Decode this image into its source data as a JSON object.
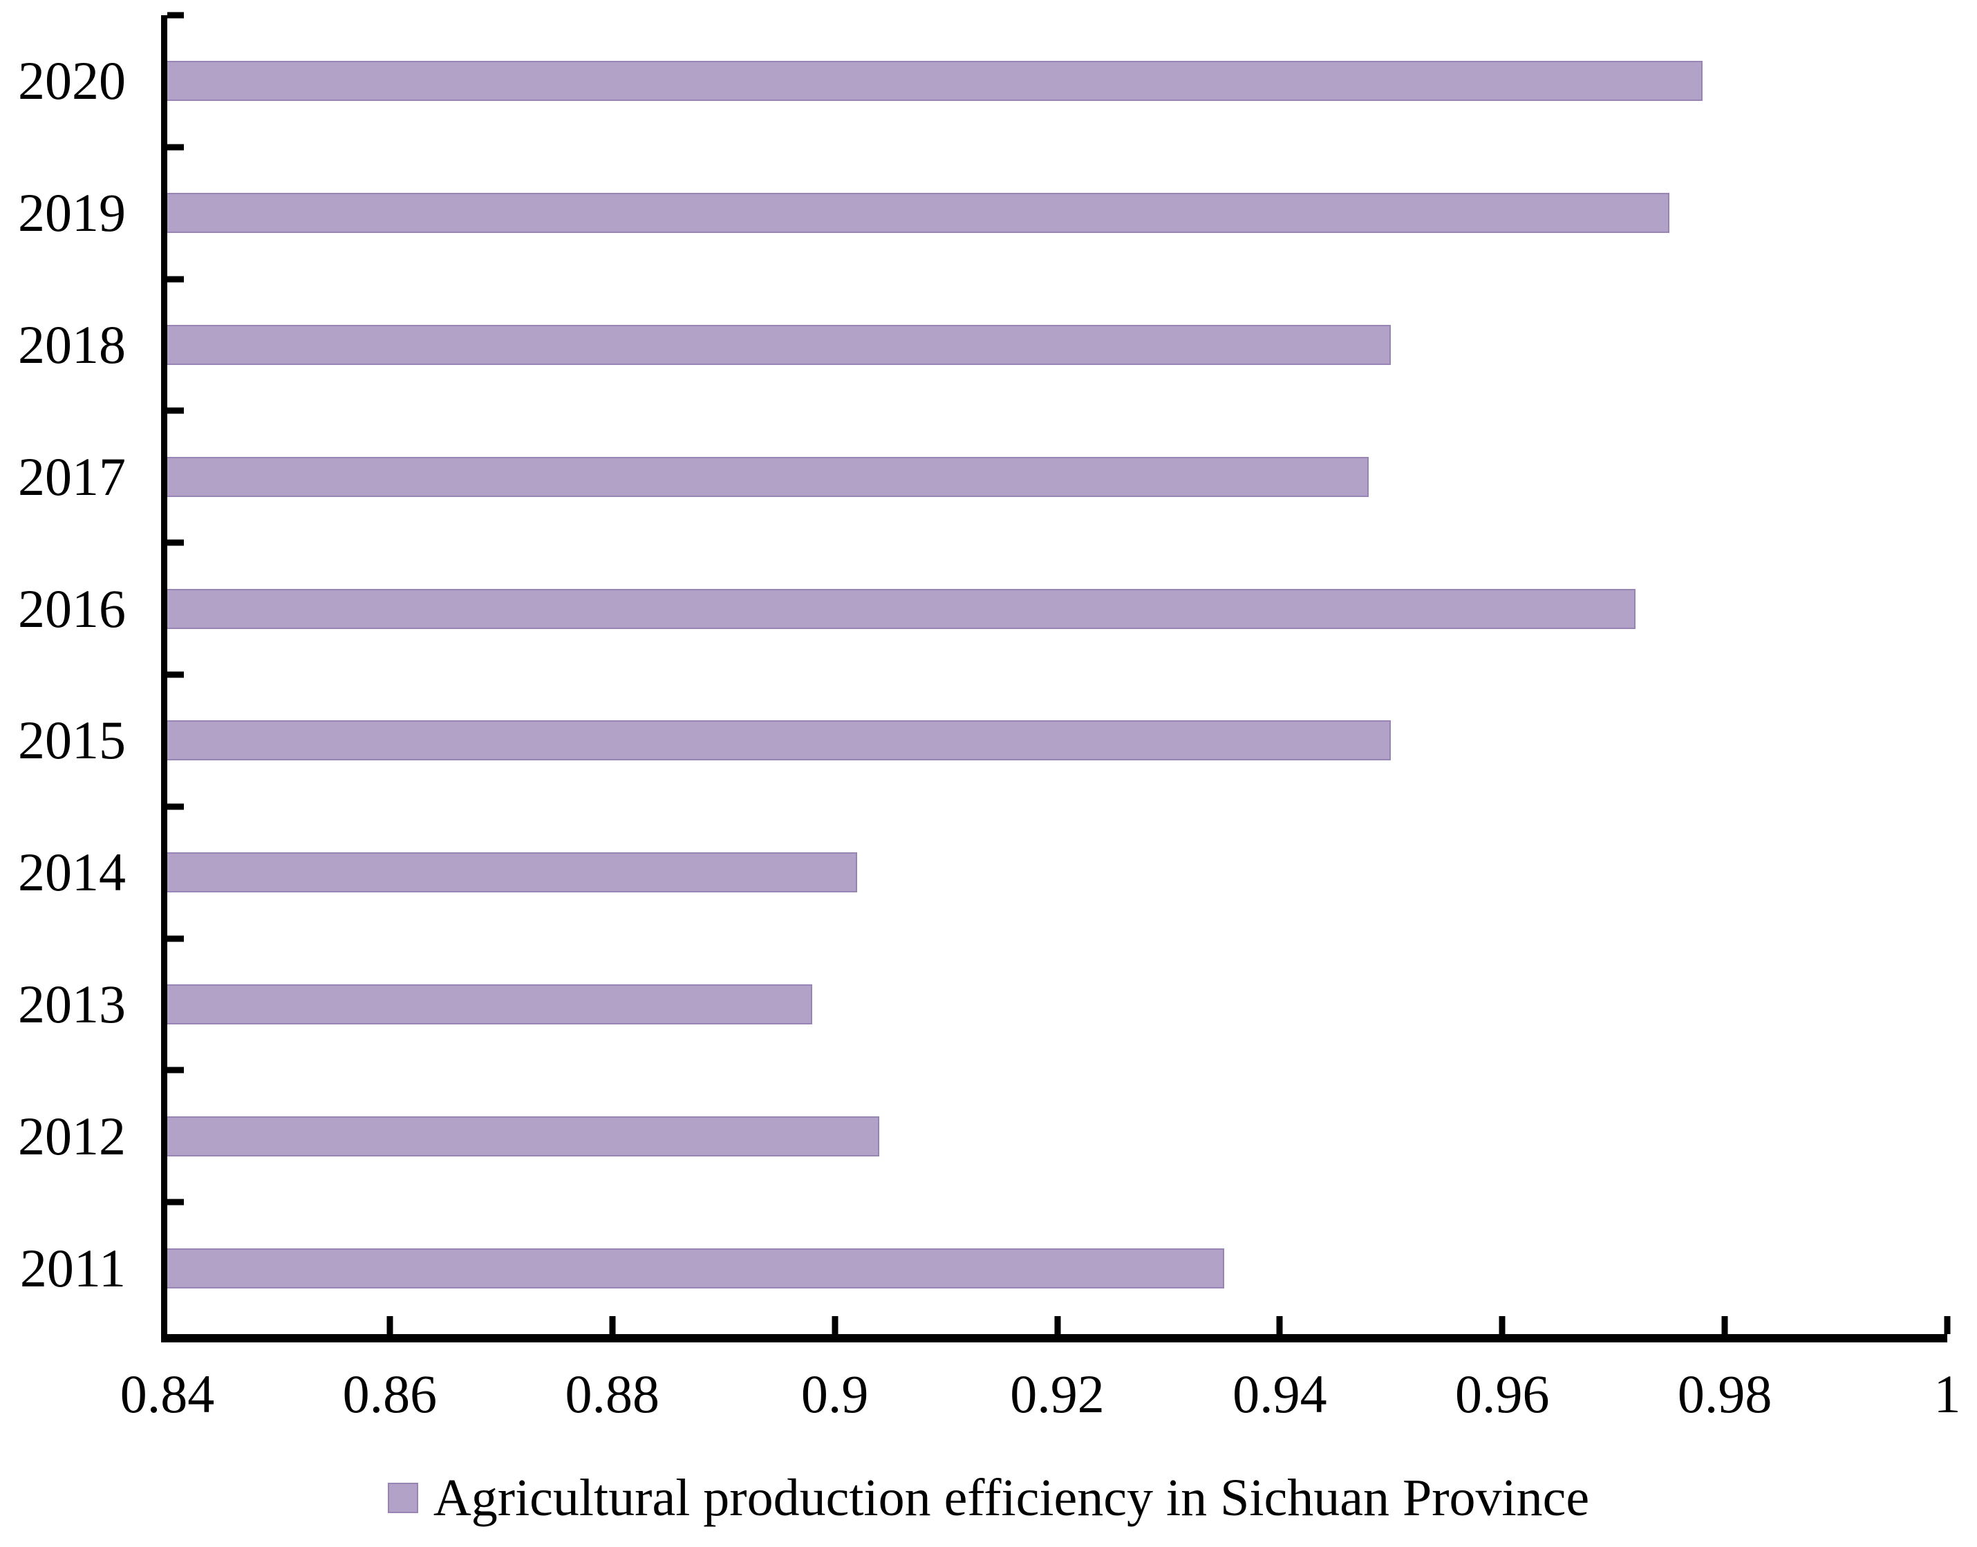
{
  "chart_data": {
    "type": "bar",
    "orientation": "horizontal",
    "title": "",
    "xlabel": "",
    "ylabel": "",
    "categories": [
      "2020",
      "2019",
      "2018",
      "2017",
      "2016",
      "2015",
      "2014",
      "2013",
      "2012",
      "2011"
    ],
    "series": [
      {
        "name": "Agricultural production efficiency in Sichuan Province",
        "values": [
          0.978,
          0.975,
          0.95,
          0.948,
          0.972,
          0.95,
          0.902,
          0.898,
          0.904,
          0.935
        ]
      }
    ],
    "xlim": [
      0.84,
      1.0
    ],
    "x_tick_values": [
      0.84,
      0.86,
      0.88,
      0.9,
      0.92,
      0.94,
      0.96,
      0.98,
      1.0
    ],
    "x_tick_labels": [
      "0.84",
      "0.86",
      "0.88",
      "0.9",
      "0.92",
      "0.94",
      "0.96",
      "0.98",
      "1"
    ],
    "grid": false,
    "legend_position": "bottom",
    "bar_color": "#b3a2c7",
    "axis_color": "#000000"
  },
  "legend": {
    "label": "Agricultural production efficiency in Sichuan Province",
    "marker_color": "#b3a2c7"
  }
}
